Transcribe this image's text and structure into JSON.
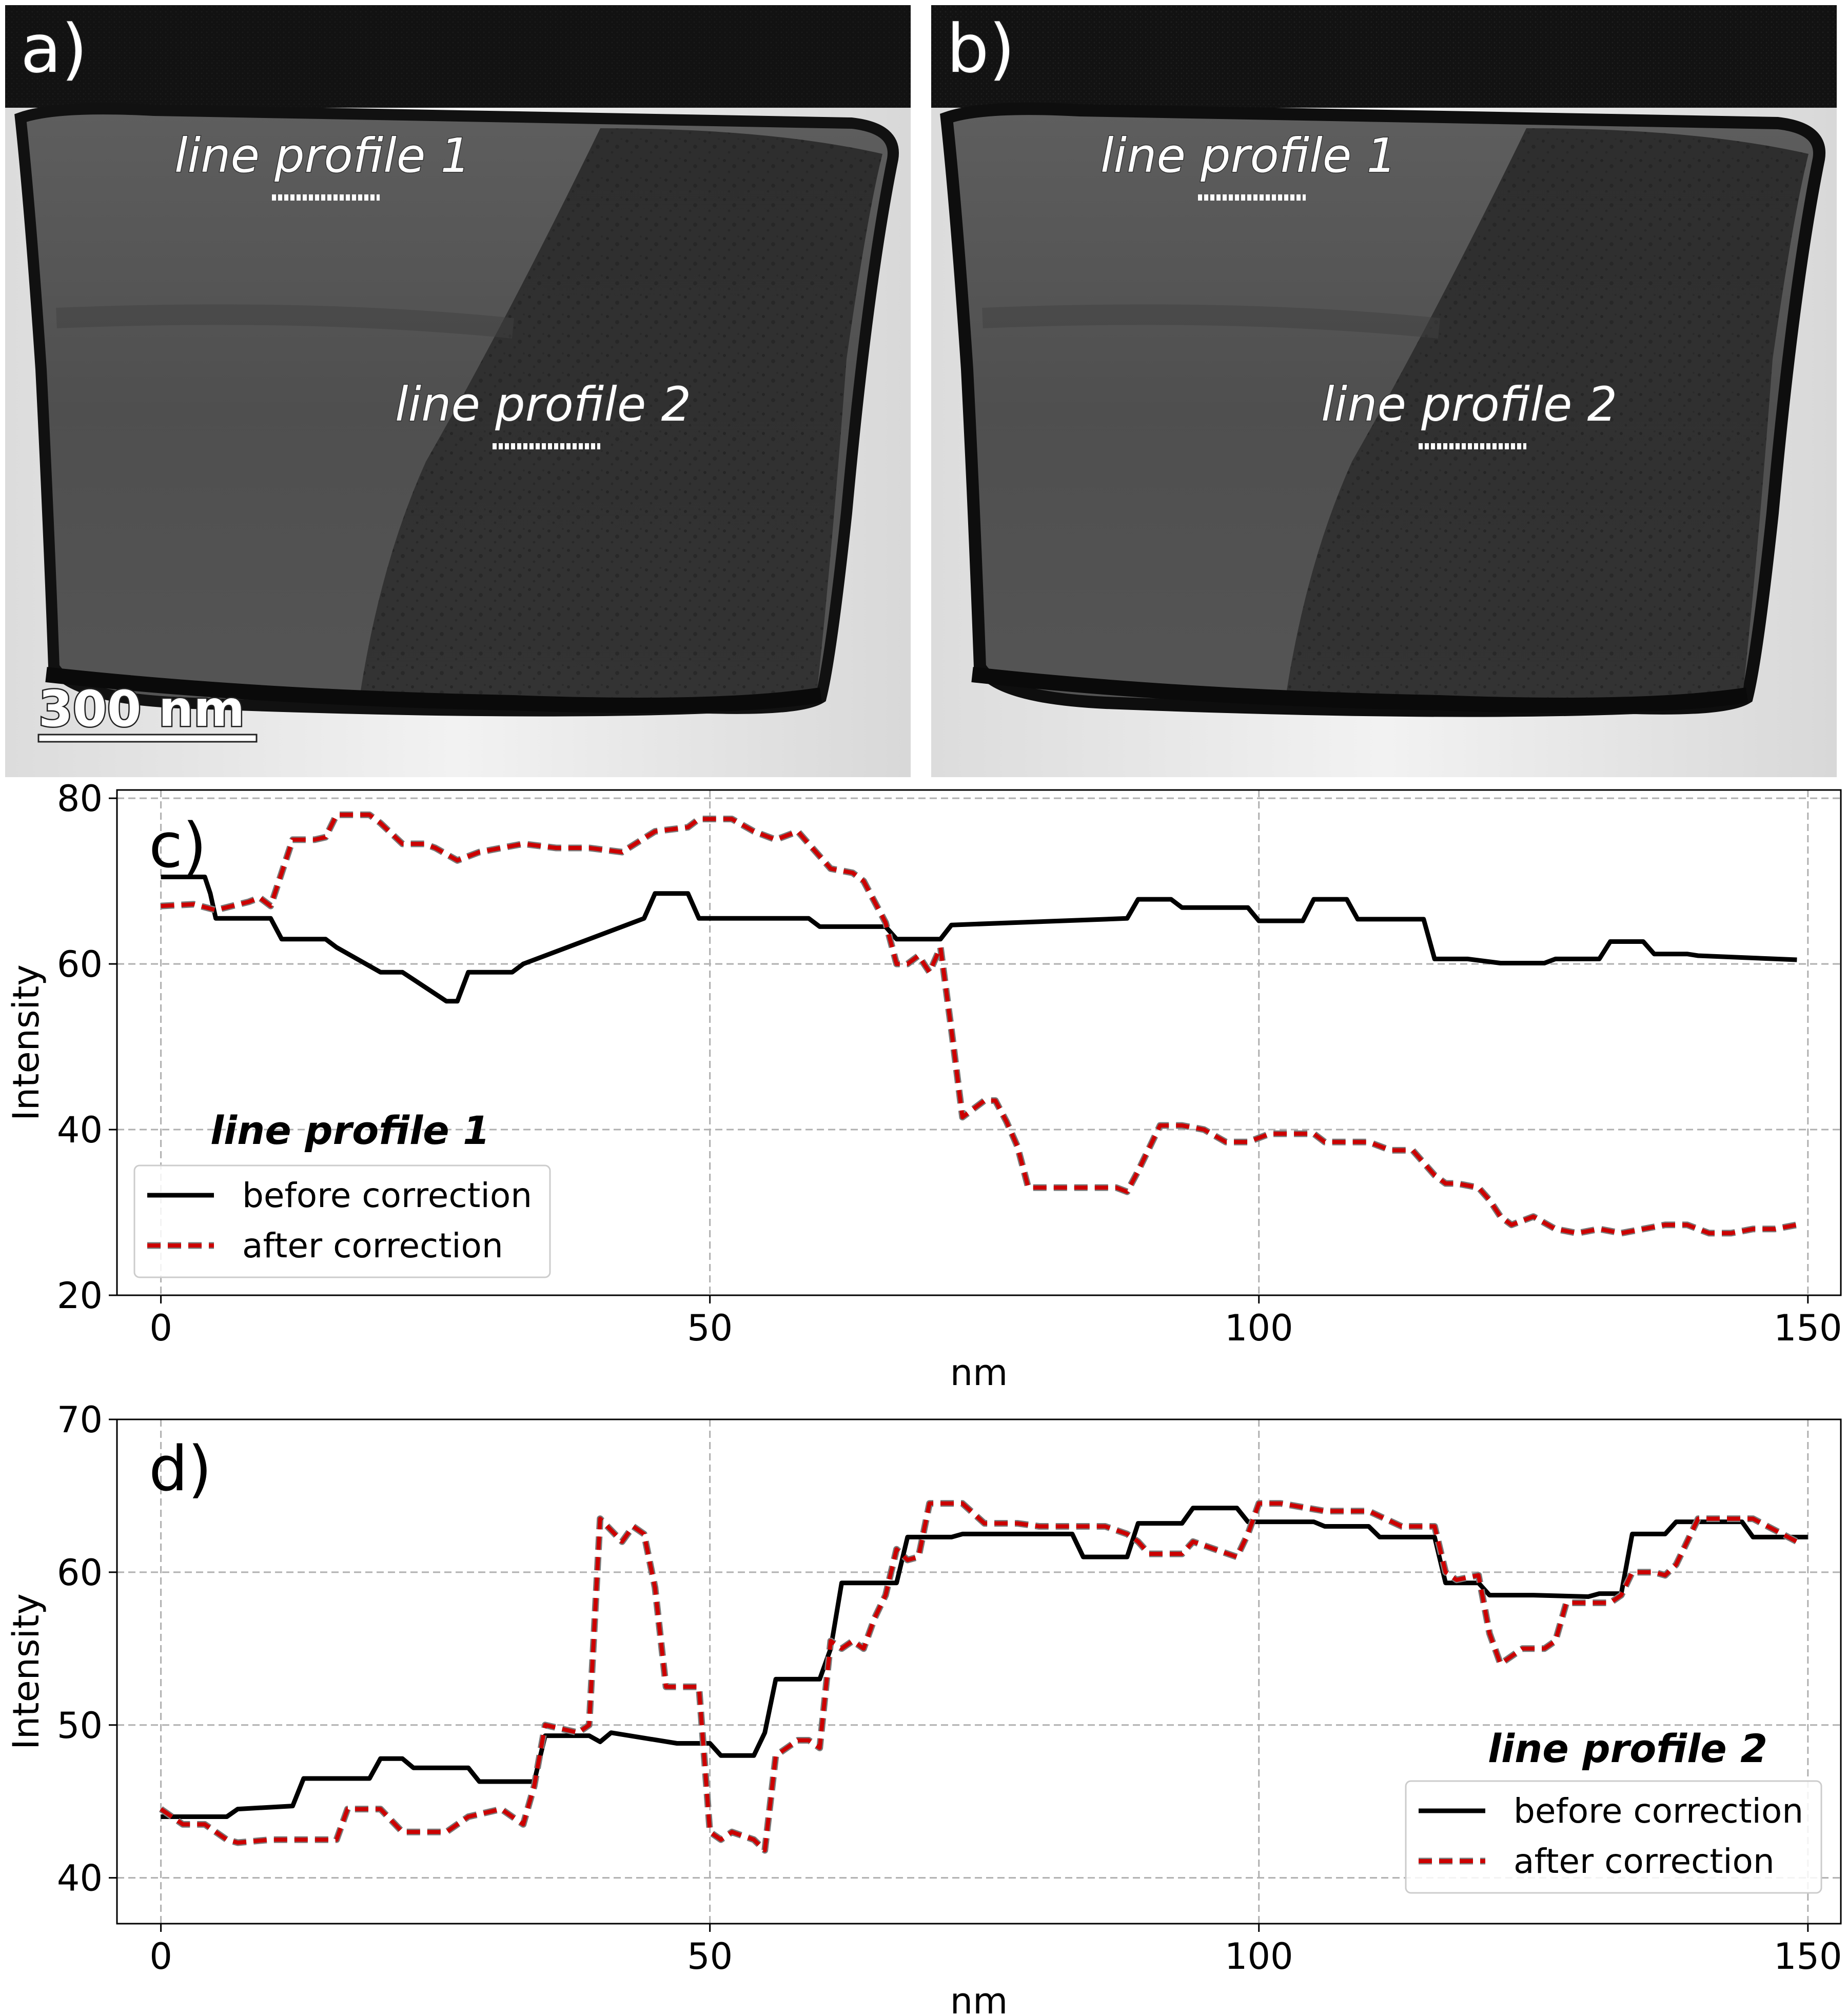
{
  "images": {
    "left": {
      "panel_label": "a)",
      "profile_labels": [
        "line profile 1",
        "line profile 2"
      ],
      "scale_bar": "300 nm"
    },
    "right": {
      "panel_label": "b)",
      "profile_labels": [
        "line profile 1",
        "line profile 2"
      ]
    }
  },
  "colors": {
    "before": "#000000",
    "after_fill": "#cc0000",
    "after_outline": "#7a7a7a"
  },
  "chart_data": [
    {
      "type": "line",
      "panel_label": "c)",
      "annotation": "line profile 1",
      "xlabel": "nm",
      "ylabel": "Intensity",
      "xlim": [
        -4,
        153
      ],
      "ylim": [
        20,
        81
      ],
      "xticks": [
        0,
        50,
        100,
        150
      ],
      "yticks": [
        20,
        40,
        60,
        80
      ],
      "grid": true,
      "legend_position": "lower-left",
      "series": [
        {
          "name": "before correction",
          "style": "solid",
          "x": [
            0,
            4,
            4.5,
            5,
            10,
            11,
            15,
            16,
            20,
            21,
            22,
            26,
            27,
            28,
            32,
            33,
            44,
            45,
            48,
            49,
            59,
            60,
            63,
            66,
            67,
            71,
            72,
            78,
            88,
            89,
            92,
            93,
            99,
            100,
            104,
            105,
            108,
            109,
            112,
            113,
            115,
            116,
            119,
            122,
            126,
            127,
            131,
            132,
            135,
            136,
            139,
            140,
            149
          ],
          "y": [
            70.5,
            70.5,
            68.5,
            65.5,
            65.5,
            63,
            63,
            62,
            59,
            59,
            59,
            55.5,
            55.5,
            59,
            59,
            60,
            65.5,
            68.5,
            68.5,
            65.5,
            65.5,
            64.5,
            64.5,
            64.5,
            63,
            63,
            64.7,
            65,
            65.5,
            67.8,
            67.8,
            66.8,
            66.8,
            65.2,
            65.2,
            67.8,
            67.8,
            65.4,
            65.4,
            65.4,
            65.4,
            60.6,
            60.6,
            60.1,
            60.1,
            60.6,
            60.6,
            62.7,
            62.7,
            61.2,
            61.2,
            61,
            60.5
          ]
        },
        {
          "name": "after correction",
          "style": "dashed",
          "x": [
            0,
            3,
            5,
            8,
            9,
            10,
            11,
            12,
            14,
            15,
            16,
            18,
            19,
            20,
            22,
            24,
            25,
            27,
            29,
            31,
            33,
            36,
            39,
            42,
            45,
            48,
            49,
            50,
            52,
            54,
            56,
            58,
            59,
            61,
            63,
            64,
            66,
            67,
            68,
            69,
            70,
            71,
            72,
            73,
            75,
            76,
            77,
            78,
            79,
            85,
            87,
            88,
            89,
            91,
            93,
            95,
            97,
            99,
            101,
            103,
            105,
            106,
            108,
            110,
            112,
            114,
            116,
            117,
            118,
            120,
            121,
            122,
            123,
            125,
            127,
            129,
            131,
            133,
            135,
            137,
            139,
            141,
            143,
            145,
            147,
            149
          ],
          "y": [
            67,
            67.2,
            66.5,
            67.5,
            68,
            67,
            71,
            75,
            75,
            75.3,
            78,
            78,
            78,
            77,
            74.5,
            74.5,
            74,
            72.5,
            73.5,
            74,
            74.5,
            74,
            74,
            73.5,
            76,
            76.5,
            77.5,
            77.5,
            77.5,
            76,
            75,
            76,
            74.5,
            71.5,
            71,
            70,
            65,
            60,
            60,
            61,
            59,
            62,
            52,
            41.5,
            43.5,
            43.5,
            41,
            38,
            33,
            33,
            33,
            32.5,
            35,
            40.5,
            40.5,
            40,
            38.5,
            38.5,
            39.5,
            39.5,
            39.5,
            38.5,
            38.5,
            38.5,
            37.5,
            37.5,
            34.5,
            33.5,
            33.5,
            33,
            31.5,
            29.5,
            28.5,
            29.5,
            28,
            27.5,
            28,
            27.5,
            28,
            28.5,
            28.5,
            27.5,
            27.5,
            28,
            28,
            28.5
          ]
        }
      ]
    },
    {
      "type": "line",
      "panel_label": "d)",
      "annotation": "line profile 2",
      "xlabel": "nm",
      "ylabel": "Intensity",
      "xlim": [
        -4,
        153
      ],
      "ylim": [
        37,
        70
      ],
      "xticks": [
        0,
        50,
        100,
        150
      ],
      "yticks": [
        40,
        50,
        60,
        70
      ],
      "grid": true,
      "legend_position": "lower-right",
      "series": [
        {
          "name": "before correction",
          "style": "solid",
          "x": [
            0,
            6,
            7,
            12,
            13,
            16,
            17,
            19,
            20,
            22,
            23,
            28,
            29,
            34,
            35,
            39,
            40,
            41,
            47,
            50,
            51,
            54,
            55,
            56,
            60,
            61,
            62,
            66,
            67,
            68,
            72,
            73,
            83,
            84,
            88,
            89,
            93,
            94,
            98,
            99,
            105,
            106,
            110,
            111,
            116,
            117,
            120,
            121,
            124,
            125,
            130,
            131,
            133,
            134,
            137,
            138,
            143,
            144,
            145,
            146,
            150
          ],
          "y": [
            44,
            44,
            44.5,
            44.7,
            46.5,
            46.5,
            46.5,
            46.5,
            47.8,
            47.8,
            47.2,
            47.2,
            46.3,
            46.3,
            49.3,
            49.3,
            48.9,
            49.5,
            48.8,
            48.8,
            48,
            48,
            49.5,
            53,
            53,
            55,
            59.3,
            59.3,
            59.3,
            62.3,
            62.3,
            62.5,
            62.5,
            61,
            61,
            63.2,
            63.2,
            64.2,
            64.2,
            63.3,
            63.3,
            63,
            63,
            62.3,
            62.3,
            59.3,
            59.3,
            58.5,
            58.5,
            58.5,
            58.4,
            58.6,
            58.6,
            62.5,
            62.5,
            63.3,
            63.3,
            63.3,
            62.3,
            62.3,
            62.3
          ]
        },
        {
          "name": "after correction",
          "style": "dashed",
          "x": [
            0,
            2,
            4,
            6,
            7,
            10,
            13,
            16,
            17,
            19,
            20,
            22,
            24,
            26,
            28,
            31,
            33,
            34,
            35,
            38,
            39,
            40,
            42,
            43,
            44,
            45,
            46,
            48,
            49,
            50,
            51,
            52,
            54,
            55,
            56,
            57,
            58,
            59,
            60,
            61,
            62,
            63,
            64,
            65,
            66,
            67,
            68,
            69,
            70,
            71,
            72,
            73,
            75,
            77,
            78,
            80,
            84,
            86,
            88,
            89,
            90,
            92,
            93,
            94,
            96,
            98,
            99,
            100,
            101,
            102,
            106,
            110,
            113,
            116,
            117,
            118,
            120,
            121,
            122,
            124,
            126,
            127,
            128,
            130,
            132,
            133,
            134,
            136,
            137,
            138,
            140,
            141,
            145,
            149
          ],
          "y": [
            44.5,
            43.5,
            43.5,
            42.5,
            42.3,
            42.5,
            42.5,
            42.5,
            44.5,
            44.5,
            44.5,
            43,
            43,
            43,
            44,
            44.5,
            43.5,
            46,
            50,
            49.5,
            50,
            63.5,
            62,
            63,
            62.5,
            59,
            52.5,
            52.5,
            52.5,
            43,
            42.5,
            43,
            42.5,
            41.8,
            48,
            48.5,
            49,
            49,
            48.5,
            55.5,
            55,
            55.5,
            55,
            57,
            58.5,
            61.5,
            60.8,
            61,
            64.5,
            64.5,
            64.5,
            64.5,
            63.2,
            63.2,
            63.2,
            63,
            63,
            63,
            62.5,
            62,
            61.2,
            61.2,
            61.2,
            62,
            61.5,
            61,
            62.5,
            64.5,
            64.5,
            64.5,
            64,
            64,
            63,
            63,
            60,
            59.5,
            59.8,
            56,
            54,
            55,
            55,
            55.5,
            58,
            58,
            58,
            58.5,
            60,
            60,
            59.8,
            60.5,
            63.5,
            63.5,
            63.5,
            62
          ]
        }
      ]
    }
  ]
}
